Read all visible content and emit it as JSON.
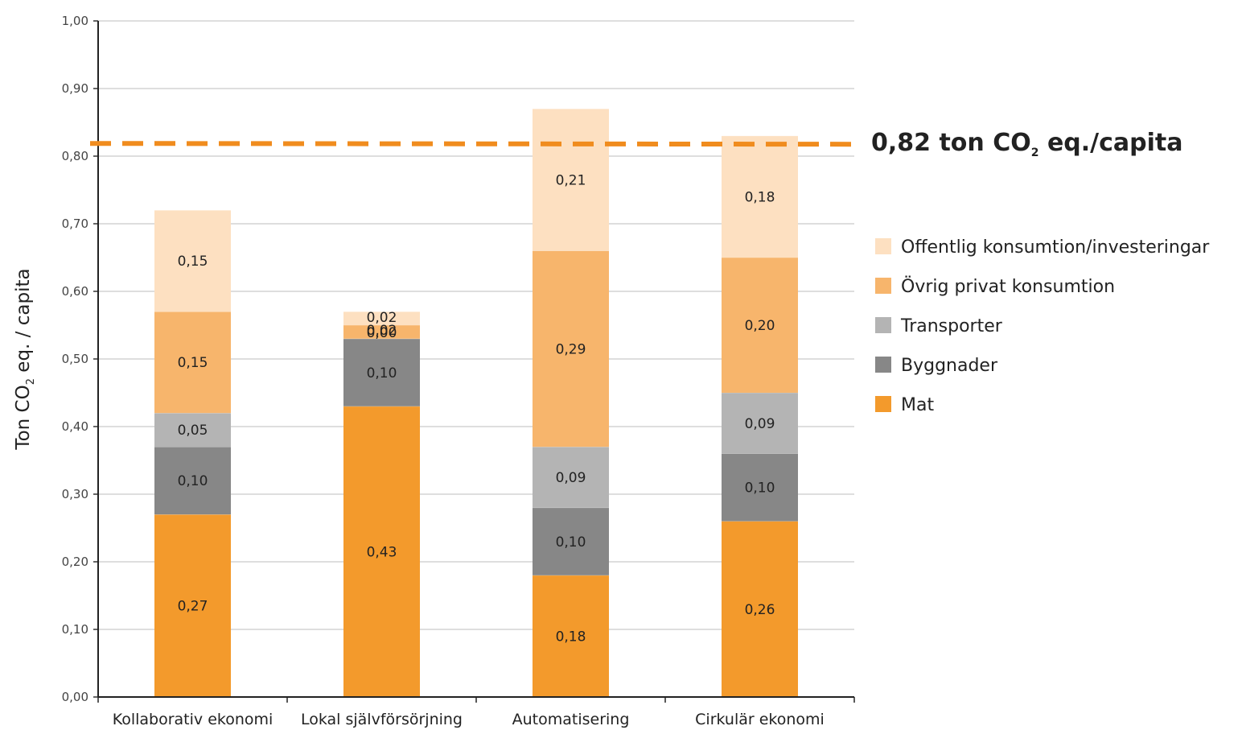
{
  "chart_data": {
    "type": "bar",
    "stacked": true,
    "categories": [
      "Kollaborativ ekonomi",
      "Lokal självförsörjning",
      "Automatisering",
      "Cirkulär ekonomi"
    ],
    "series": [
      {
        "name": "Mat",
        "color": "#f39a2c",
        "values": [
          0.27,
          0.43,
          0.18,
          0.26
        ],
        "labels": [
          "0,27",
          "0,43",
          "0,18",
          "0,26"
        ]
      },
      {
        "name": "Byggnader",
        "color": "#878787",
        "values": [
          0.1,
          0.1,
          0.1,
          0.1
        ],
        "labels": [
          "0,10",
          "0,10",
          "0,10",
          "0,10"
        ]
      },
      {
        "name": "Transporter",
        "color": "#b4b4b4",
        "values": [
          0.05,
          0.0,
          0.09,
          0.09
        ],
        "labels": [
          "0,05",
          "0,00",
          "0,09",
          "0,09"
        ]
      },
      {
        "name": "Övrig privat konsumtion",
        "color": "#f7b56c",
        "values": [
          0.15,
          0.02,
          0.29,
          0.2
        ],
        "labels": [
          "0,15",
          "0,02",
          "0,29",
          "0,20"
        ]
      },
      {
        "name": "Offentlig konsumtion/investeringar",
        "color": "#fde0c1",
        "values": [
          0.15,
          0.02,
          0.21,
          0.18
        ],
        "labels": [
          "0,15",
          "0,02",
          "0,21",
          "0,18"
        ]
      }
    ],
    "ylabel_main": "Ton CO",
    "ylabel_sub": "2",
    "ylabel_rest": " eq. / capita",
    "ylim": [
      0,
      1.0
    ],
    "yticks": [
      0,
      0.1,
      0.2,
      0.3,
      0.4,
      0.5,
      0.6,
      0.7,
      0.8,
      0.9,
      1.0
    ],
    "ytick_labels": [
      "0,00",
      "0,10",
      "0,20",
      "0,30",
      "0,40",
      "0,50",
      "0,60",
      "0,70",
      "0,80",
      "0,90",
      "1,00"
    ],
    "grid": true,
    "legend_position": "right",
    "legend_order": [
      "Offentlig konsumtion/investeringar",
      "Övrig privat konsumtion",
      "Transporter",
      "Byggnader",
      "Mat"
    ],
    "threshold": {
      "value": 0.82,
      "color": "#f08c1e",
      "label_main": "0,82 ton CO",
      "label_sub": "2",
      "label_rest": " eq./capita"
    }
  }
}
